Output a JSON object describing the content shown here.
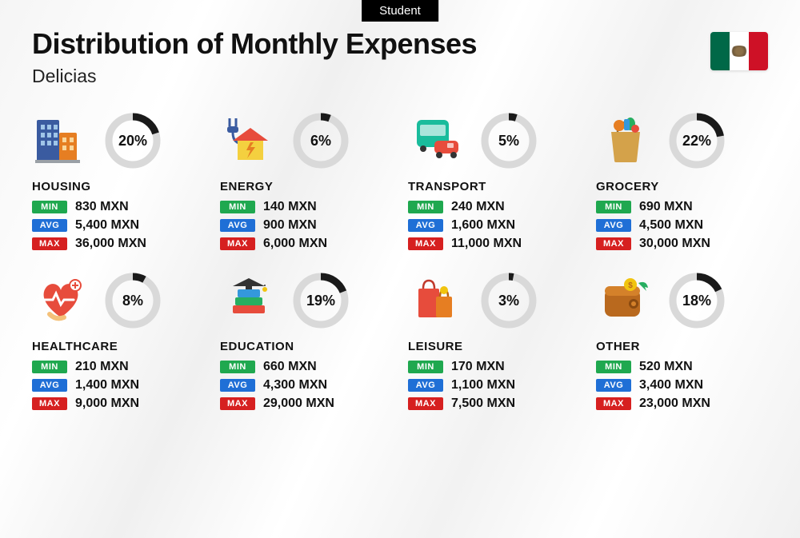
{
  "tag": "Student",
  "title": "Distribution of Monthly Expenses",
  "subtitle": "Delicias",
  "currency": "MXN",
  "badges": {
    "min": {
      "label": "MIN",
      "color": "#1fa84f"
    },
    "avg": {
      "label": "AVG",
      "color": "#1f6fd6"
    },
    "max": {
      "label": "MAX",
      "color": "#d62020"
    }
  },
  "ring": {
    "track_color": "#d9d9d9",
    "progress_color": "#1a1a1a",
    "stroke_width": 9,
    "radius": 30
  },
  "flag": {
    "left": "#006847",
    "mid": "#ffffff",
    "right": "#ce1126"
  },
  "categories": [
    {
      "key": "housing",
      "name": "HOUSING",
      "pct": 20,
      "min": "830",
      "avg": "5,400",
      "max": "36,000",
      "icon": "housing"
    },
    {
      "key": "energy",
      "name": "ENERGY",
      "pct": 6,
      "min": "140",
      "avg": "900",
      "max": "6,000",
      "icon": "energy"
    },
    {
      "key": "transport",
      "name": "TRANSPORT",
      "pct": 5,
      "min": "240",
      "avg": "1,600",
      "max": "11,000",
      "icon": "transport"
    },
    {
      "key": "grocery",
      "name": "GROCERY",
      "pct": 22,
      "min": "690",
      "avg": "4,500",
      "max": "30,000",
      "icon": "grocery"
    },
    {
      "key": "healthcare",
      "name": "HEALTHCARE",
      "pct": 8,
      "min": "210",
      "avg": "1,400",
      "max": "9,000",
      "icon": "healthcare"
    },
    {
      "key": "education",
      "name": "EDUCATION",
      "pct": 19,
      "min": "660",
      "avg": "4,300",
      "max": "29,000",
      "icon": "education"
    },
    {
      "key": "leisure",
      "name": "LEISURE",
      "pct": 3,
      "min": "170",
      "avg": "1,100",
      "max": "7,500",
      "icon": "leisure"
    },
    {
      "key": "other",
      "name": "OTHER",
      "pct": 18,
      "min": "520",
      "avg": "3,400",
      "max": "23,000",
      "icon": "other"
    }
  ]
}
